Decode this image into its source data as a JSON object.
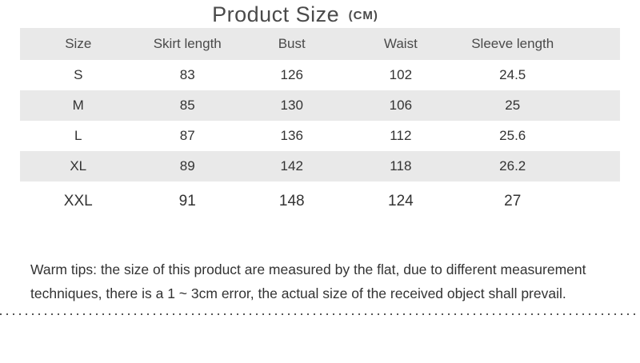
{
  "title": {
    "main": "Product Size",
    "unit": "(CM)"
  },
  "table": {
    "headers": [
      "Size",
      "Skirt length",
      "Bust",
      "Waist",
      "Sleeve length"
    ],
    "rows": [
      [
        "S",
        "83",
        "126",
        "102",
        "24.5"
      ],
      [
        "M",
        "85",
        "130",
        "106",
        "25"
      ],
      [
        "L",
        "87",
        "136",
        "112",
        "25.6"
      ],
      [
        "XL",
        "89",
        "142",
        "118",
        "26.2"
      ],
      [
        "XXL",
        "91",
        "148",
        "124",
        "27"
      ]
    ]
  },
  "warm_tips": {
    "line1": "Warm tips: the size of this product are measured by the flat, due to different measurement",
    "line2": "techniques, there is a 1 ~ 3cm error, the actual size of the received object shall prevail."
  },
  "colors": {
    "stripe": "#e9e9e9",
    "title_text": "#4a4a4a",
    "header_text": "#4a4a4a",
    "data_text": "#333333",
    "dotted_line": "#555555",
    "background": "#ffffff"
  }
}
